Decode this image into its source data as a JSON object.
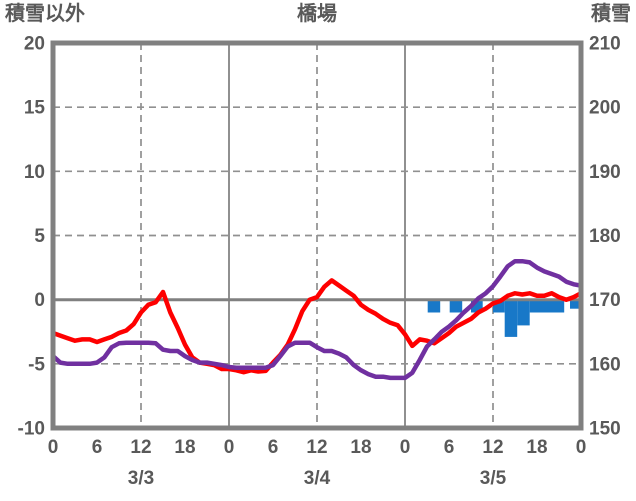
{
  "titles": {
    "left": "積雪以外",
    "center": "橋場",
    "right": "積雪"
  },
  "colors": {
    "red_line": "#fe0000",
    "purple_line": "#7030a0",
    "blue_bar": "#1878c8",
    "frame": "#808080",
    "gridline": "#909090",
    "zero_line": "#808080",
    "text": "#595959"
  },
  "chart_data": {
    "type": "line",
    "title": "橋場",
    "x": {
      "unit": "hour",
      "span_hours": 72,
      "tick_interval_hours": 6,
      "tick_labels": [
        "0",
        "6",
        "12",
        "18",
        "0",
        "6",
        "12",
        "18",
        "0",
        "6",
        "12",
        "18",
        "0"
      ],
      "day_labels": [
        "3/3",
        "3/4",
        "3/5"
      ],
      "day_label_center_hours": [
        12,
        36,
        60
      ],
      "solid_gridline_hours": [
        24,
        48
      ],
      "dashed_gridline_hours": [
        12,
        36,
        60
      ]
    },
    "left_axis": {
      "title": "積雪以外",
      "min": -10,
      "max": 20,
      "ticks": [
        20,
        15,
        10,
        5,
        0,
        -5,
        -10
      ],
      "zero_line_at": 0,
      "dashed_gridlines_at": [
        15,
        10,
        5,
        -5
      ]
    },
    "right_axis": {
      "title": "積雪",
      "min": 150,
      "max": 210,
      "ticks": [
        210,
        200,
        190,
        180,
        170,
        160,
        150
      ]
    },
    "series": [
      {
        "name": "blue-bars",
        "type": "bar",
        "axis": "left",
        "color": "#1878c8",
        "baseline": 0,
        "bars": [
          {
            "from_hour": 51.1,
            "to_hour": 52.8,
            "value": -1.0
          },
          {
            "from_hour": 54.1,
            "to_hour": 55.8,
            "value": -1.0
          },
          {
            "from_hour": 57.0,
            "to_hour": 58.6,
            "value": -1.0
          },
          {
            "from_hour": 60.0,
            "to_hour": 61.6,
            "value": -1.0
          },
          {
            "from_hour": 61.6,
            "to_hour": 63.3,
            "value": -2.9
          },
          {
            "from_hour": 63.3,
            "to_hour": 65.0,
            "value": -2.0
          },
          {
            "from_hour": 65.0,
            "to_hour": 69.7,
            "value": -1.0
          },
          {
            "from_hour": 70.5,
            "to_hour": 72.0,
            "value": -0.7
          }
        ]
      },
      {
        "name": "red-line",
        "type": "line",
        "axis": "left",
        "color": "#fe0000",
        "start_hour": 0,
        "step_hours": 1,
        "values": [
          -2.6,
          -2.8,
          -3.0,
          -3.2,
          -3.1,
          -3.1,
          -3.3,
          -3.1,
          -2.9,
          -2.6,
          -2.4,
          -1.9,
          -1.0,
          -0.4,
          -0.2,
          0.6,
          -1.0,
          -2.2,
          -3.5,
          -4.5,
          -4.9,
          -5.0,
          -5.1,
          -5.4,
          -5.4,
          -5.5,
          -5.65,
          -5.5,
          -5.6,
          -5.55,
          -4.9,
          -4.3,
          -3.5,
          -2.3,
          -0.9,
          0.0,
          0.2,
          1.0,
          1.5,
          1.1,
          0.7,
          0.3,
          -0.4,
          -0.8,
          -1.1,
          -1.5,
          -1.8,
          -2.0,
          -2.7,
          -3.6,
          -3.1,
          -3.2,
          -3.4,
          -3.0,
          -2.6,
          -2.1,
          -1.8,
          -1.5,
          -1.0,
          -0.7,
          -0.3,
          -0.1,
          0.3,
          0.5,
          0.4,
          0.5,
          0.3,
          0.3,
          0.5,
          0.2,
          0.0,
          0.2,
          0.5
        ]
      },
      {
        "name": "purple-line",
        "type": "line",
        "axis": "right",
        "color": "#7030a0",
        "start_hour": 0,
        "step_hours": 1,
        "values": [
          161.2,
          160.2,
          160,
          160,
          160,
          160,
          160.2,
          161,
          162.6,
          163.2,
          163.3,
          163.3,
          163.3,
          163.3,
          163.2,
          162.2,
          162,
          162,
          161.2,
          160.6,
          160.2,
          160.2,
          160,
          159.8,
          159.5,
          159.4,
          159.4,
          159.4,
          159.4,
          159.4,
          159.8,
          161.2,
          162.7,
          163.3,
          163.3,
          163.3,
          162.6,
          162,
          162,
          161.6,
          161,
          159.8,
          159,
          158.4,
          158,
          158,
          157.8,
          157.8,
          157.8,
          158.6,
          160.6,
          162.7,
          163.8,
          165,
          165.8,
          166.8,
          168,
          169,
          170.2,
          171,
          172.1,
          173.6,
          175.2,
          176,
          176,
          175.8,
          175,
          174.4,
          174,
          173.6,
          172.8,
          172.4,
          172.2
        ]
      }
    ],
    "grid": true,
    "legend": "none"
  }
}
